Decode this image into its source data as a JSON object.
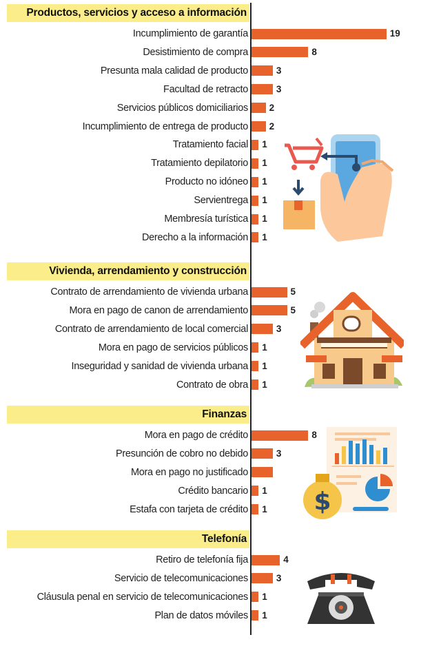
{
  "chart_data": {
    "type": "bar",
    "orientation": "horizontal",
    "bar_color": "#e8632b",
    "header_color": "#fbee8a",
    "groups": [
      {
        "title": "Productos, servicios y acceso a información",
        "icon": "shopping-phone-icon",
        "categories": [
          "Incumplimiento de garantía",
          "Desistimiento de compra",
          "Presunta mala calidad de producto",
          "Facultad de retracto",
          "Servicios públicos domiciliarios",
          "Incumplimiento de entrega de producto",
          "Tratamiento facial",
          "Tratamiento depilatorio",
          "Producto no idóneo",
          "Servientrega",
          "Membresía turística",
          "Derecho a la información"
        ],
        "values": [
          19,
          8,
          3,
          3,
          2,
          2,
          1,
          1,
          1,
          1,
          1,
          1
        ],
        "labels": [
          "19",
          "8",
          "3",
          "3",
          "2",
          "2",
          "1",
          "1",
          "1",
          "1",
          "1",
          "1"
        ]
      },
      {
        "title": "Vivienda, arrendamiento y construcción",
        "icon": "house-icon",
        "categories": [
          "Contrato de arrendamiento de vivienda urbana",
          "Mora en pago de canon de arrendamiento",
          "Contrato de arrendamiento de local comercial",
          "Mora en pago de servicios públicos",
          "Inseguridad y sanidad de vivienda urbana",
          "Contrato de obra"
        ],
        "values": [
          5,
          5,
          3,
          1,
          1,
          1
        ],
        "labels": [
          "5",
          "5",
          "3",
          "1",
          "1",
          "1"
        ]
      },
      {
        "title": "Finanzas",
        "icon": "finance-report-icon",
        "categories": [
          "Mora en pago de crédito",
          "Presunción de cobro no debido",
          "Mora en pago no justificado",
          "Crédito bancario",
          "Estafa con tarjeta de crédito"
        ],
        "values": [
          8,
          3,
          3,
          1,
          1
        ],
        "labels": [
          "8",
          "3",
          "",
          "1",
          "1"
        ]
      },
      {
        "title": "Telefonía",
        "icon": "telephone-icon",
        "categories": [
          "Retiro de telefonía fija",
          "Servicio de telecomunicaciones",
          "Cláusula penal en servicio de telecomunicaciones",
          "Plan de datos móviles"
        ],
        "values": [
          4,
          3,
          1,
          1
        ],
        "labels": [
          "4",
          "3",
          "1",
          "1"
        ]
      }
    ]
  }
}
